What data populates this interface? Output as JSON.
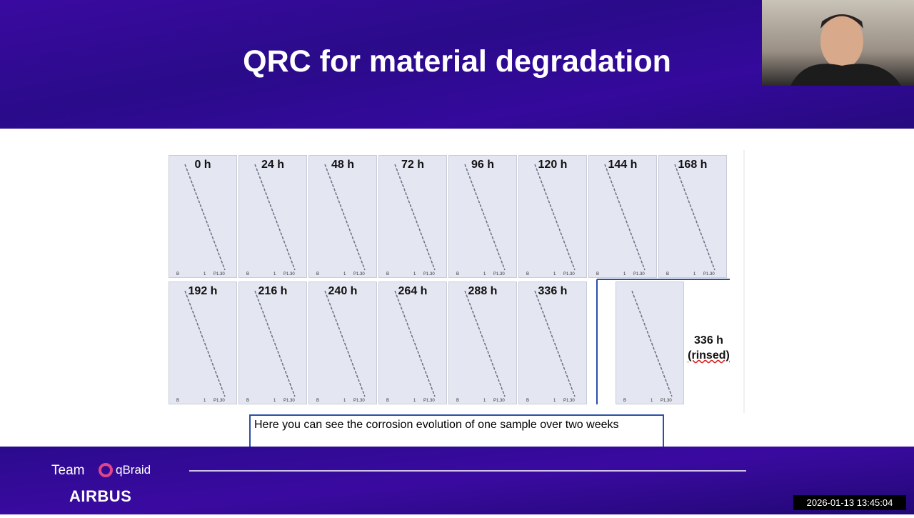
{
  "slide": {
    "title": "QRC for material degradation",
    "row1": [
      "0 h",
      "24 h",
      "48 h",
      "72 h",
      "96 h",
      "120 h",
      "144 h",
      "168 h"
    ],
    "row2": [
      "192 h",
      "216 h",
      "240 h",
      "264 h",
      "288 h",
      "336 h"
    ],
    "panel_marks": [
      "B",
      "1",
      "P1.30"
    ],
    "rinsed_label": [
      "336 h",
      "(rinsed)"
    ]
  },
  "caption": "Here you can see the corrosion evolution of one sample over two weeks",
  "footer": {
    "team": "Team",
    "brand": "qBraid",
    "sponsor": "AIRBUS"
  },
  "timestamp": "2026-01-13  13:45:04"
}
